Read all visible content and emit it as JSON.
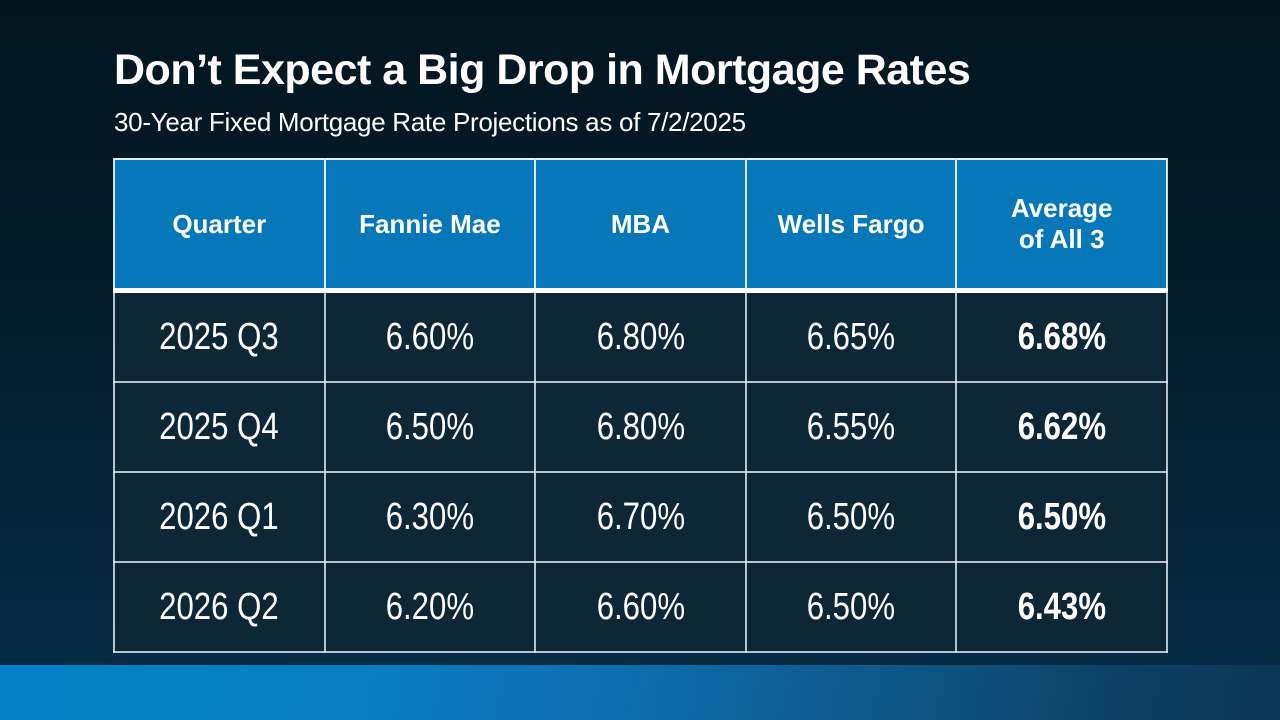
{
  "slide": {
    "title": "Don’t Expect a Big Drop in Mortgage Rates",
    "subtitle": "30-Year Fixed Mortgage Rate Projections as of 7/2/2025"
  },
  "table": {
    "headers": [
      "Quarter",
      "Fannie Mae",
      "MBA",
      "Wells Fargo",
      "Average\nof All 3"
    ],
    "rows": [
      [
        "2025 Q3",
        "6.60%",
        "6.80%",
        "6.65%",
        "6.68%"
      ],
      [
        "2025 Q4",
        "6.50%",
        "6.80%",
        "6.55%",
        "6.62%"
      ],
      [
        "2026 Q1",
        "6.30%",
        "6.70%",
        "6.50%",
        "6.50%"
      ],
      [
        "2026 Q2",
        "6.20%",
        "6.60%",
        "6.50%",
        "6.43%"
      ]
    ]
  },
  "colors": {
    "header_blue": "#0677b9",
    "row_background": "#0d2737",
    "slide_background_top": "#031620",
    "slide_background_bottom": "#063049",
    "bottom_bar_left": "#0281c8",
    "bottom_bar_right": "#0b3654",
    "text": "#ffffff",
    "table_border": "#e9eff4"
  },
  "chart_data": {
    "type": "table",
    "title": "Don’t Expect a Big Drop in Mortgage Rates",
    "subtitle": "30-Year Fixed Mortgage Rate Projections as of 7/2/2025",
    "columns": [
      "Quarter",
      "Fannie Mae",
      "MBA",
      "Wells Fargo",
      "Average of All 3"
    ],
    "categories": [
      "2025 Q3",
      "2025 Q4",
      "2026 Q1",
      "2026 Q2"
    ],
    "series": [
      {
        "name": "Fannie Mae",
        "values": [
          6.6,
          6.5,
          6.3,
          6.2
        ]
      },
      {
        "name": "MBA",
        "values": [
          6.8,
          6.8,
          6.7,
          6.6
        ]
      },
      {
        "name": "Wells Fargo",
        "values": [
          6.65,
          6.55,
          6.5,
          6.5
        ]
      },
      {
        "name": "Average of All 3",
        "values": [
          6.68,
          6.62,
          6.5,
          6.43
        ]
      }
    ],
    "value_unit": "%"
  }
}
